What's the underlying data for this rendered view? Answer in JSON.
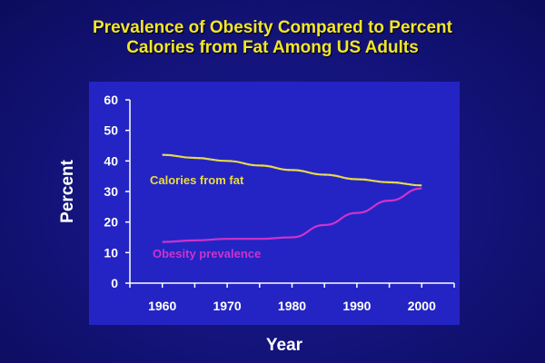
{
  "chart_data": {
    "type": "line",
    "title": [
      "Prevalence of Obesity Compared to Percent",
      "Calories from Fat Among US Adults"
    ],
    "xlabel": "Year",
    "ylabel": "Percent",
    "x": [
      1960,
      1970,
      1980,
      1990,
      2000
    ],
    "xticks": [
      "1960",
      "1970",
      "1980",
      "1990",
      "2000"
    ],
    "yticks": [
      "0",
      "10",
      "20",
      "30",
      "40",
      "50",
      "60"
    ],
    "ylim": [
      0,
      60
    ],
    "xlim": [
      1955,
      2005
    ],
    "series": [
      {
        "name": "Calories from fat",
        "x": [
          1960,
          1965,
          1970,
          1975,
          1980,
          1985,
          1990,
          1995,
          2000
        ],
        "values": [
          42,
          41,
          40,
          38.5,
          37,
          35.5,
          34,
          33,
          32
        ],
        "color": "#e8d82a"
      },
      {
        "name": "Obesity prevalence",
        "x": [
          1960,
          1965,
          1970,
          1975,
          1980,
          1985,
          1990,
          1995,
          2000
        ],
        "values": [
          13.5,
          14,
          14.5,
          14.5,
          15,
          19,
          23,
          27,
          31
        ],
        "color": "#cc33cc"
      }
    ],
    "legend": "inline labels",
    "grid": false
  }
}
